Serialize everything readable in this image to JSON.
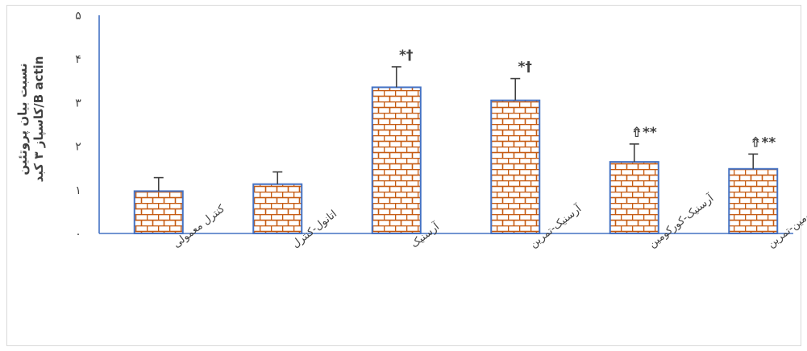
{
  "chart_data": {
    "type": "bar",
    "ylabel_lines": [
      "نسبت بیان پروتئین",
      "B actin/کاسپاز ۳ کبد"
    ],
    "y_ticks": [
      "۰",
      "۱",
      "۲",
      "۳",
      "۴",
      "۵"
    ],
    "ylim": [
      0,
      5
    ],
    "categories": [
      "کنترل معمولی",
      "اتانول-کنترل",
      "آرسنیک",
      "آرسنیک-تمرین",
      "آرسنیک-کورکومین",
      "آرسنیک-کورکومین-تمرین"
    ],
    "values": [
      0.97,
      1.13,
      3.35,
      3.05,
      1.64,
      1.48
    ],
    "error": [
      0.31,
      0.28,
      0.47,
      0.5,
      0.41,
      0.34
    ],
    "annotations": [
      "",
      "",
      "*†",
      "*†",
      "⇮**",
      "⇮**"
    ],
    "grid": false,
    "legend": "none"
  },
  "colors": {
    "bar_outline": "#4472c4",
    "brick_fill": "#ffffff",
    "brick_mortar": "#c55a11",
    "axis": "#4472c4",
    "error_bar": "#404040",
    "text": "#404040"
  }
}
